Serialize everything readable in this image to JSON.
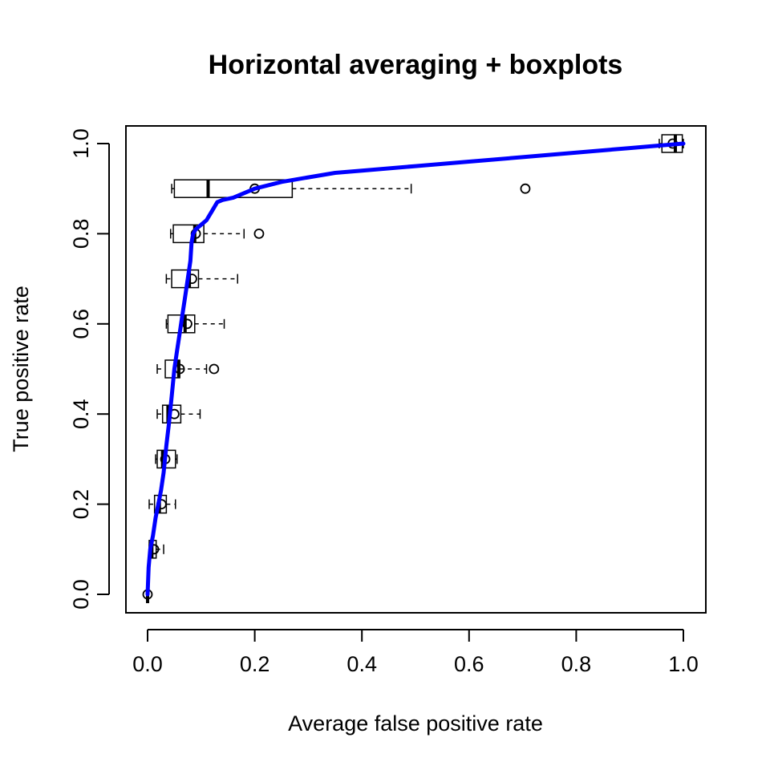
{
  "chart_data": {
    "type": "line",
    "title": "Horizontal averaging + boxplots",
    "xlabel": "Average false positive rate",
    "ylabel": "True positive rate",
    "xlim": [
      0,
      1
    ],
    "ylim": [
      0,
      1
    ],
    "x_ticks": [
      {
        "value": 0.0,
        "label": "0.0"
      },
      {
        "value": 0.2,
        "label": "0.2"
      },
      {
        "value": 0.4,
        "label": "0.4"
      },
      {
        "value": 0.6,
        "label": "0.6"
      },
      {
        "value": 0.8,
        "label": "0.8"
      },
      {
        "value": 1.0,
        "label": "1.0"
      }
    ],
    "y_ticks": [
      {
        "value": 0.0,
        "label": "0.0"
      },
      {
        "value": 0.2,
        "label": "0.2"
      },
      {
        "value": 0.4,
        "label": "0.4"
      },
      {
        "value": 0.6,
        "label": "0.6"
      },
      {
        "value": 0.8,
        "label": "0.8"
      },
      {
        "value": 1.0,
        "label": "1.0"
      }
    ],
    "grid": false,
    "line_color": "#0000ff",
    "box_color": "#000000",
    "curve": {
      "x": [
        0.0,
        0.002,
        0.005,
        0.01,
        0.015,
        0.02,
        0.025,
        0.03,
        0.035,
        0.04,
        0.045,
        0.05,
        0.055,
        0.06,
        0.065,
        0.07,
        0.075,
        0.08,
        0.082,
        0.085,
        0.09,
        0.095,
        0.1,
        0.11,
        0.12,
        0.13,
        0.14,
        0.16,
        0.2,
        0.25,
        0.3,
        0.35,
        0.4,
        0.5,
        0.6,
        0.7,
        0.8,
        0.9,
        0.95,
        0.98,
        1.0
      ],
      "y": [
        0.0,
        0.06,
        0.1,
        0.13,
        0.17,
        0.2,
        0.23,
        0.27,
        0.33,
        0.38,
        0.44,
        0.5,
        0.54,
        0.58,
        0.62,
        0.66,
        0.7,
        0.74,
        0.78,
        0.8,
        0.81,
        0.815,
        0.82,
        0.83,
        0.85,
        0.87,
        0.875,
        0.88,
        0.9,
        0.915,
        0.925,
        0.935,
        0.94,
        0.95,
        0.96,
        0.97,
        0.98,
        0.99,
        0.995,
        0.998,
        1.0
      ]
    },
    "boxplots": [
      {
        "y": 0.0,
        "whisker_low": 0.0,
        "q1": 0.0,
        "median": 0.0,
        "q3": 0.0,
        "whisker_high": 0.0,
        "mean": 0.0,
        "outliers": []
      },
      {
        "y": 0.1,
        "whisker_low": 0.003,
        "q1": 0.003,
        "median": 0.008,
        "q3": 0.016,
        "whisker_high": 0.03,
        "mean": 0.012,
        "outliers": []
      },
      {
        "y": 0.2,
        "whisker_low": 0.003,
        "q1": 0.013,
        "median": 0.022,
        "q3": 0.035,
        "whisker_high": 0.052,
        "mean": 0.026,
        "outliers": []
      },
      {
        "y": 0.3,
        "whisker_low": 0.015,
        "q1": 0.018,
        "median": 0.028,
        "q3": 0.052,
        "whisker_high": 0.055,
        "mean": 0.033,
        "outliers": []
      },
      {
        "y": 0.4,
        "whisker_low": 0.018,
        "q1": 0.028,
        "median": 0.038,
        "q3": 0.062,
        "whisker_high": 0.098,
        "mean": 0.05,
        "outliers": []
      },
      {
        "y": 0.5,
        "whisker_low": 0.018,
        "q1": 0.033,
        "median": 0.058,
        "q3": 0.06,
        "whisker_high": 0.11,
        "mean": 0.06,
        "outliers": [
          0.124
        ]
      },
      {
        "y": 0.6,
        "whisker_low": 0.035,
        "q1": 0.038,
        "median": 0.07,
        "q3": 0.088,
        "whisker_high": 0.143,
        "mean": 0.074,
        "outliers": []
      },
      {
        "y": 0.7,
        "whisker_low": 0.035,
        "q1": 0.045,
        "median": 0.078,
        "q3": 0.095,
        "whisker_high": 0.168,
        "mean": 0.083,
        "outliers": []
      },
      {
        "y": 0.8,
        "whisker_low": 0.043,
        "q1": 0.048,
        "median": 0.088,
        "q3": 0.105,
        "whisker_high": 0.18,
        "mean": 0.09,
        "outliers": [
          0.208
        ]
      },
      {
        "y": 0.9,
        "whisker_low": 0.045,
        "q1": 0.05,
        "median": 0.113,
        "q3": 0.27,
        "whisker_high": 0.492,
        "mean": 0.2,
        "outliers": [
          0.705
        ]
      },
      {
        "y": 1.0,
        "whisker_low": 0.955,
        "q1": 0.96,
        "median": 0.985,
        "q3": 0.998,
        "whisker_high": 1.0,
        "mean": 0.98,
        "outliers": []
      }
    ]
  }
}
